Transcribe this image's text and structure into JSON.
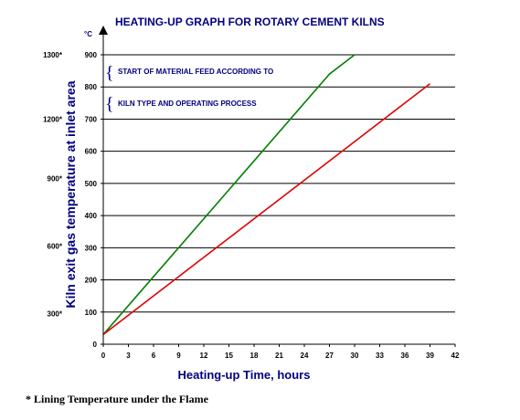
{
  "chart_data": {
    "type": "line",
    "title": "HEATING-UP GRAPH FOR ROTARY CEMENT KILNS",
    "xlabel": "Heating-up Time, hours",
    "ylabel": "Kiln exit gas temperature at inlet area",
    "y_unit": "°C",
    "xlim": [
      0,
      42
    ],
    "ylim": [
      0,
      900
    ],
    "x_ticks": [
      0,
      3,
      6,
      9,
      12,
      15,
      18,
      21,
      24,
      27,
      30,
      33,
      36,
      39,
      42
    ],
    "y_ticks": [
      0,
      100,
      200,
      300,
      400,
      500,
      600,
      700,
      800,
      900
    ],
    "grid": "horizontal",
    "secondary_y_ticks": [
      {
        "label": "300*",
        "y": 95
      },
      {
        "label": "600*",
        "y": 305
      },
      {
        "label": "900*",
        "y": 515
      },
      {
        "label": "1200*",
        "y": 700
      },
      {
        "label": "1300*",
        "y": 900
      }
    ],
    "series": [
      {
        "color": "#008000",
        "points": [
          [
            0,
            30
          ],
          [
            27,
            840
          ],
          [
            30,
            900
          ]
        ]
      },
      {
        "color": "#e00000",
        "points": [
          [
            0,
            30
          ],
          [
            39,
            810
          ]
        ]
      }
    ],
    "annotations": [
      {
        "text": "START OF  MATERIAL FEED ACCORDING TO",
        "color": "#000080"
      },
      {
        "text": "KILN TYPE AND OPERATING PROCESS",
        "color": "#000080"
      }
    ],
    "footnote": "* Lining Temperature under the Flame"
  }
}
